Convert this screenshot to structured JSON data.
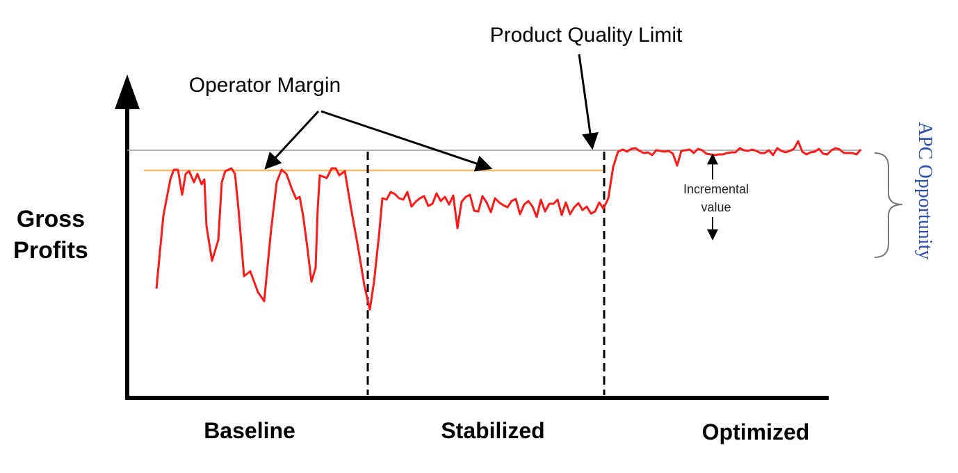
{
  "labels": {
    "y_axis_line1": "Gross",
    "y_axis_line2": "Profits",
    "phase_baseline": "Baseline",
    "phase_stabilized": "Stabilized",
    "phase_optimized": "Optimized",
    "operator_margin": "Operator Margin",
    "product_quality_limit": "Product Quality Limit",
    "incremental_line1": "Incremental",
    "incremental_line2": "value",
    "apc_opportunity": "APC Opportunity"
  },
  "colors": {
    "signal": "#ff1a1a",
    "operator_margin_line": "#f5b86a",
    "quality_limit_line": "#9a9a9a",
    "axis": "#000000",
    "apc_text": "#3050b0"
  },
  "icons": {
    "y_arrow": "arrow-up-icon",
    "brace": "curly-brace-icon"
  }
}
